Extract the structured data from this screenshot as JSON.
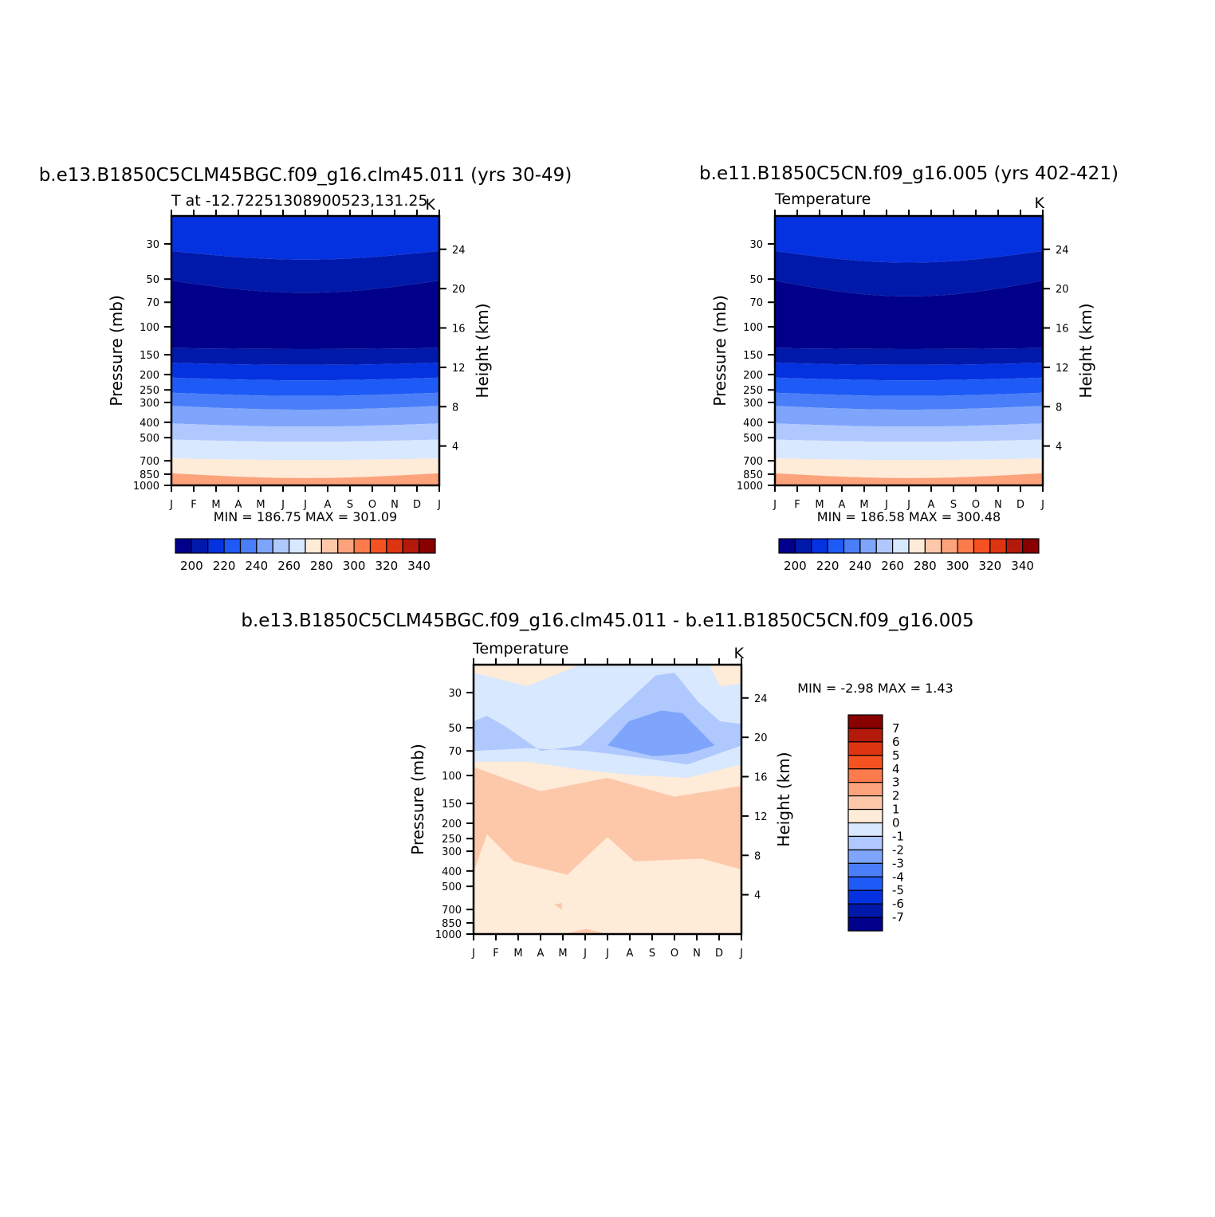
{
  "chart_data": [
    {
      "type": "heatmap",
      "title": "b.e13.B1850C5CLM45BGC.f09_g16.clm45.011 (yrs 30-49)",
      "subtitle_left": "T at -12.72251308900523,131.25",
      "subtitle_right": "K",
      "xlabel": "",
      "ylabel": "Pressure (mb)",
      "ylabel_right": "Height (km)",
      "x_ticks": [
        "J",
        "F",
        "M",
        "A",
        "M",
        "J",
        "J",
        "A",
        "S",
        "O",
        "N",
        "D",
        "J"
      ],
      "y_ticks": [
        "30",
        "50",
        "70",
        "100",
        "150",
        "200",
        "250",
        "300",
        "400",
        "500",
        "700",
        "850",
        "1000"
      ],
      "y_ticks_right": [
        "24",
        "20",
        "16",
        "12",
        "8",
        "4"
      ],
      "y_scale": "log (pressure)",
      "ylim": [
        1000,
        20
      ],
      "stats": "MIN = 186.75 MAX = 301.09",
      "colorbar": {
        "levels": [
          190,
          200,
          210,
          220,
          230,
          240,
          250,
          260,
          270,
          280,
          290,
          300,
          310,
          320,
          330,
          340
        ],
        "labels": [
          "200",
          "220",
          "240",
          "260",
          "280",
          "300",
          "320",
          "340"
        ]
      }
    },
    {
      "type": "heatmap",
      "title": "b.e11.B1850C5CN.f09_g16.005 (yrs 402-421)",
      "subtitle_left": "Temperature",
      "subtitle_right": "K",
      "xlabel": "",
      "ylabel": "Pressure (mb)",
      "ylabel_right": "Height (km)",
      "x_ticks": [
        "J",
        "F",
        "M",
        "A",
        "M",
        "J",
        "J",
        "A",
        "S",
        "O",
        "N",
        "D",
        "J"
      ],
      "y_ticks": [
        "30",
        "50",
        "70",
        "100",
        "150",
        "200",
        "250",
        "300",
        "400",
        "500",
        "700",
        "850",
        "1000"
      ],
      "y_ticks_right": [
        "24",
        "20",
        "16",
        "12",
        "8",
        "4"
      ],
      "y_scale": "log (pressure)",
      "ylim": [
        1000,
        20
      ],
      "stats": "MIN = 186.58 MAX = 300.48",
      "colorbar": {
        "levels": [
          190,
          200,
          210,
          220,
          230,
          240,
          250,
          260,
          270,
          280,
          290,
          300,
          310,
          320,
          330,
          340
        ],
        "labels": [
          "200",
          "220",
          "240",
          "260",
          "280",
          "300",
          "320",
          "340"
        ]
      }
    },
    {
      "type": "heatmap",
      "title": "b.e13.B1850C5CLM45BGC.f09_g16.clm45.011 - b.e11.B1850C5CN.f09_g16.005",
      "subtitle_left": "Temperature",
      "subtitle_right": "K",
      "xlabel": "",
      "ylabel": "Pressure (mb)",
      "ylabel_right": "Height (km)",
      "x_ticks": [
        "J",
        "F",
        "M",
        "A",
        "M",
        "J",
        "J",
        "A",
        "S",
        "O",
        "N",
        "D",
        "J"
      ],
      "y_ticks": [
        "30",
        "50",
        "70",
        "100",
        "150",
        "200",
        "250",
        "300",
        "400",
        "500",
        "700",
        "850",
        "1000"
      ],
      "y_ticks_right": [
        "24",
        "20",
        "16",
        "12",
        "8",
        "4"
      ],
      "y_scale": "log (pressure)",
      "ylim": [
        1000,
        20
      ],
      "stats": "MIN = -2.98 MAX = 1.43",
      "colorbar": {
        "levels": [
          -7,
          -6,
          -5,
          -4,
          -3,
          -2,
          -1,
          0,
          1,
          2,
          3,
          4,
          5,
          6,
          7
        ],
        "labels": [
          "7",
          "6",
          "5",
          "4",
          "3",
          "2",
          "1",
          "0",
          "-1",
          "-2",
          "-3",
          "-4",
          "-5",
          "-6",
          "-7"
        ]
      }
    }
  ],
  "palette": {
    "blues": [
      "#00008a",
      "#0019aa",
      "#0532e0",
      "#1e5af5",
      "#4a7ef8",
      "#7ea5fb",
      "#afc8fd",
      "#d8e8fe"
    ],
    "reds": [
      "#feebd8",
      "#fdc8aa",
      "#fca37c",
      "#fc7b4c",
      "#f55222",
      "#dd3512",
      "#b31a0c",
      "#880000"
    ]
  }
}
